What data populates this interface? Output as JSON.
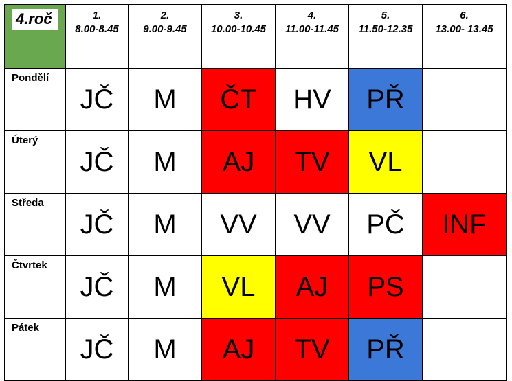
{
  "class_label": "4.roč",
  "periods": [
    {
      "number": "1.",
      "time": "8.00-8.45"
    },
    {
      "number": "2.",
      "time": "9.00-9.45"
    },
    {
      "number": "3.",
      "time": "10.00-10.45"
    },
    {
      "number": "4.",
      "time": "11.00-11.45"
    },
    {
      "number": "5.",
      "time": "11.50-12.35"
    },
    {
      "number": "6.",
      "time": "13.00- 13.45"
    }
  ],
  "colors": {
    "red": "#ff0000",
    "yellow": "#ffff00",
    "blue": "#3c78d8",
    "green_header": "#6aa84f",
    "white": "#ffffff"
  },
  "days": [
    {
      "name": "Pondělí",
      "lessons": [
        {
          "subject": "JČ",
          "color": "white"
        },
        {
          "subject": "M",
          "color": "white"
        },
        {
          "subject": "ČT",
          "color": "red"
        },
        {
          "subject": "HV",
          "color": "white"
        },
        {
          "subject": "PŘ",
          "color": "blue"
        },
        {
          "subject": "",
          "color": "white"
        }
      ]
    },
    {
      "name": "Úterý",
      "lessons": [
        {
          "subject": "JČ",
          "color": "white"
        },
        {
          "subject": "M",
          "color": "white"
        },
        {
          "subject": "AJ",
          "color": "red"
        },
        {
          "subject": "TV",
          "color": "red"
        },
        {
          "subject": "VL",
          "color": "yellow"
        },
        {
          "subject": "",
          "color": "white"
        }
      ]
    },
    {
      "name": "Středa",
      "lessons": [
        {
          "subject": "JČ",
          "color": "white"
        },
        {
          "subject": "M",
          "color": "white"
        },
        {
          "subject": "VV",
          "color": "white"
        },
        {
          "subject": "VV",
          "color": "white"
        },
        {
          "subject": "PČ",
          "color": "white"
        },
        {
          "subject": "INF",
          "color": "red"
        }
      ]
    },
    {
      "name": "Čtvrtek",
      "lessons": [
        {
          "subject": "JČ",
          "color": "white"
        },
        {
          "subject": "M",
          "color": "white"
        },
        {
          "subject": "VL",
          "color": "yellow"
        },
        {
          "subject": "AJ",
          "color": "red"
        },
        {
          "subject": "PS",
          "color": "red"
        },
        {
          "subject": "",
          "color": "white"
        }
      ]
    },
    {
      "name": "Pátek",
      "lessons": [
        {
          "subject": "JČ",
          "color": "white"
        },
        {
          "subject": "M",
          "color": "white"
        },
        {
          "subject": "AJ",
          "color": "red"
        },
        {
          "subject": "TV",
          "color": "red"
        },
        {
          "subject": "PŘ",
          "color": "blue"
        },
        {
          "subject": "",
          "color": "white"
        }
      ]
    }
  ]
}
